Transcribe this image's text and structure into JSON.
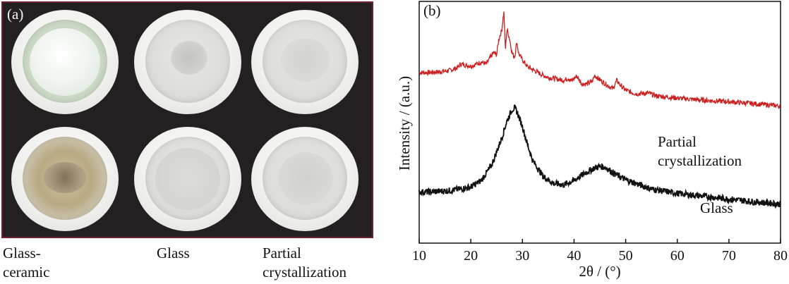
{
  "panel_a": {
    "label": "(a)",
    "samples": [
      {
        "lines": [
          "Glass-",
          "ceramic"
        ]
      },
      {
        "lines": [
          "Glass"
        ]
      },
      {
        "lines": [
          "Partial",
          "crystallization"
        ]
      }
    ]
  },
  "chart_data": {
    "type": "line",
    "panel_label": "(b)",
    "xlabel": "2θ / (°)",
    "ylabel": "Intensity / (a.u.)",
    "xlim": [
      10,
      80
    ],
    "xticks": [
      10,
      20,
      30,
      40,
      50,
      60,
      70,
      80
    ],
    "yticks_shown": false,
    "series": [
      {
        "name": "Partial crystallization",
        "label_lines": [
          "Partial",
          "crystallization"
        ],
        "color": "#cc1f1f",
        "x": [
          10,
          12,
          14,
          16,
          17.5,
          18,
          20,
          21.8,
          22,
          23,
          24.4,
          25,
          25.4,
          26,
          26.4,
          26.7,
          27,
          27.5,
          28,
          28.5,
          28.9,
          29.3,
          30,
          31,
          32,
          33,
          34,
          35,
          36,
          38,
          38.9,
          39.5,
          40.5,
          41.5,
          42.5,
          43.5,
          44,
          44.6,
          45.5,
          46.5,
          47.5,
          48.3,
          49,
          50,
          52,
          54.3,
          56,
          60,
          65,
          70,
          75,
          80
        ],
        "y": [
          240,
          240,
          241,
          243,
          247,
          252,
          249,
          254,
          255,
          252,
          268,
          265,
          286,
          300,
          326,
          272,
          301,
          288,
          267,
          262,
          283,
          266,
          258,
          248,
          244,
          240,
          236,
          233,
          232,
          229,
          232,
          228,
          235,
          224,
          224,
          227,
          236,
          232,
          227,
          222,
          217,
          229,
          222,
          215,
          210,
          211,
          207,
          204,
          201,
          199,
          196,
          193
        ]
      },
      {
        "name": "Glass",
        "label_lines": [
          "Glass"
        ],
        "color": "#111111",
        "x": [
          10,
          12,
          14,
          16,
          18,
          20,
          22,
          24,
          26,
          27,
          28,
          28.5,
          29,
          30,
          31,
          32,
          34,
          36,
          38,
          40,
          42,
          44,
          45,
          46,
          48,
          50,
          55,
          60,
          65,
          70,
          75,
          80
        ],
        "y": [
          72,
          72,
          73,
          74,
          76,
          79,
          88,
          109,
          148,
          172,
          188,
          190,
          184,
          164,
          138,
          116,
          94,
          84,
          82,
          88,
          98,
          106,
          108,
          107,
          97,
          89,
          76,
          70,
          66,
          62,
          58,
          55
        ]
      }
    ]
  }
}
